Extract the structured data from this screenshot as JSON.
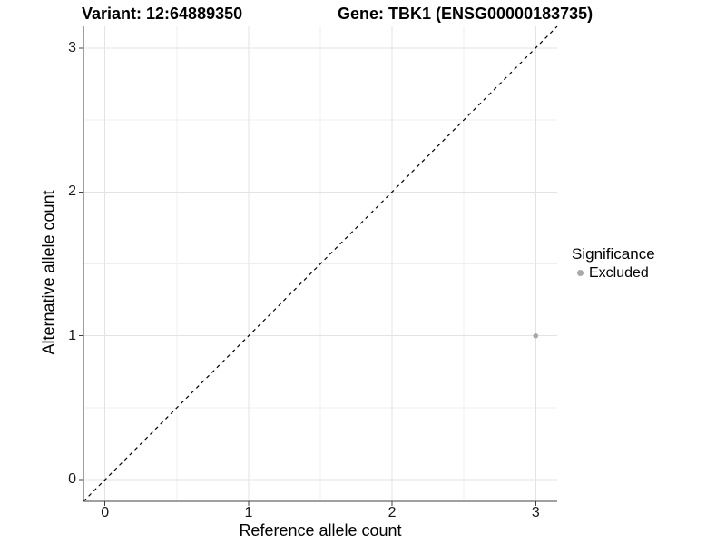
{
  "titles": {
    "variant": "Variant: 12:64889350",
    "gene": "Gene: TBK1 (ENSG00000183735)"
  },
  "axes": {
    "x_label": "Reference allele count",
    "y_label": "Alternative allele count"
  },
  "legend": {
    "title": "Significance",
    "items": [
      {
        "label": "Excluded",
        "color": "#a9a9a9"
      }
    ]
  },
  "colors": {
    "background": "#ffffff",
    "axis_line": "#404040",
    "major_grid": "#e3e3e3",
    "minor_grid": "#efefef",
    "reference_line": "#000000",
    "point": "#a9a9a9"
  },
  "chart_data": {
    "type": "scatter",
    "title": "Variant: 12:64889350 | Gene: TBK1 (ENSG00000183735)",
    "xlabel": "Reference allele count",
    "ylabel": "Alternative allele count",
    "xlim": [
      0,
      3
    ],
    "ylim": [
      0,
      3
    ],
    "x_ticks": [
      0,
      1,
      2,
      3
    ],
    "y_ticks": [
      0,
      1,
      2,
      3
    ],
    "x_minor_ticks": [
      0.5,
      1.5,
      2.5
    ],
    "y_minor_ticks": [
      0.5,
      1.5,
      2.5
    ],
    "grid": true,
    "legend_position": "right",
    "reference_line": {
      "type": "identity",
      "style": "dashed",
      "color": "#000000"
    },
    "series": [
      {
        "name": "Excluded",
        "color": "#a9a9a9",
        "points": [
          {
            "x": 3,
            "y": 1
          }
        ]
      }
    ]
  }
}
